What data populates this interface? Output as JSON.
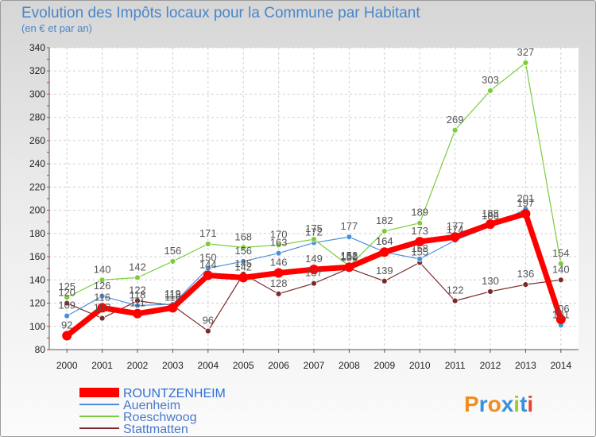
{
  "chart_data": {
    "type": "line",
    "title": "Evolution des Impôts locaux pour la Commune par Habitant",
    "subtitle": "(en € et par an)",
    "xlabel": "",
    "ylabel": "",
    "x": [
      "2000",
      "2001",
      "2002",
      "2003",
      "2004",
      "2005",
      "2006",
      "2007",
      "2008",
      "2009",
      "2010",
      "2011",
      "2012",
      "2013",
      "2014"
    ],
    "ylim": [
      80,
      340
    ],
    "yticks": [
      80,
      100,
      120,
      140,
      160,
      180,
      200,
      220,
      240,
      260,
      280,
      300,
      320,
      340
    ],
    "grid": true,
    "legend_position": "bottom-left",
    "series": [
      {
        "name": "ROUNTZENHEIM",
        "color": "#ff0000",
        "values": [
          92,
          116,
          111,
          116,
          144,
          142,
          146,
          149,
          151,
          164,
          173,
          177,
          188,
          197,
          106
        ]
      },
      {
        "name": "Auenheim",
        "color": "#4a90d9",
        "values": [
          109,
          126,
          118,
          119,
          150,
          156,
          163,
          172,
          177,
          164,
          158,
          174,
          186,
          201,
          101
        ]
      },
      {
        "name": "Roeschwoog",
        "color": "#7ccc3c",
        "values": [
          125,
          140,
          142,
          156,
          171,
          168,
          170,
          175,
          152,
          182,
          189,
          269,
          303,
          327,
          154
        ]
      },
      {
        "name": "Stattmatten",
        "color": "#7a2a2a",
        "values": [
          120,
          107,
          122,
          118,
          96,
          145,
          128,
          137,
          150,
          139,
          155,
          122,
          130,
          136,
          140
        ]
      }
    ]
  },
  "brand": {
    "text": "Proxiti"
  }
}
